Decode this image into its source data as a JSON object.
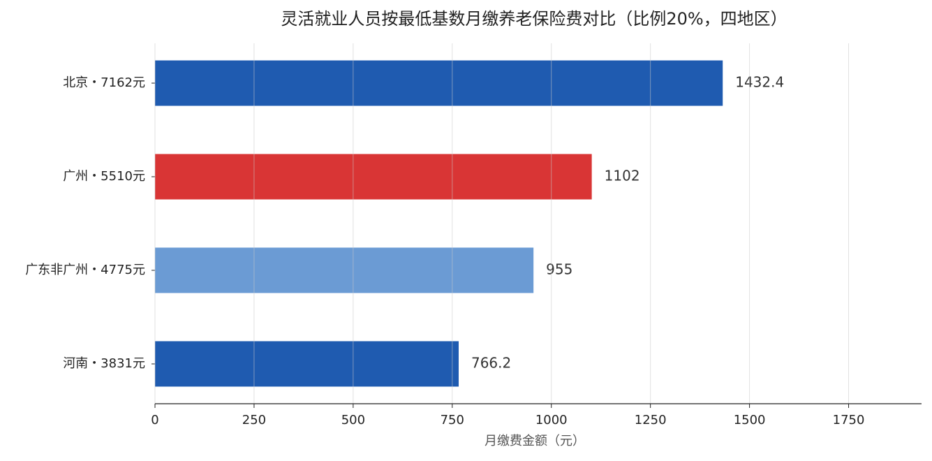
{
  "chart_data": {
    "type": "barh",
    "title": "灵活就业人员按最低基数月缴养老保险费对比（比例20%，四地区）",
    "xlabel": "月缴费金额（元）",
    "categories": [
      "北京・7162元",
      "广州・5510元",
      "广东非广州・4775元",
      "河南・3831元"
    ],
    "values": [
      1432.4,
      1102,
      955,
      766.2
    ],
    "colors": [
      "#1f5bb0",
      "#d93535",
      "#6b9bd4",
      "#1f5bb0"
    ],
    "xlim": [
      0,
      1934
    ],
    "xticks": [
      0,
      250,
      500,
      750,
      1000,
      1250,
      1500,
      1750
    ],
    "grid": true
  }
}
